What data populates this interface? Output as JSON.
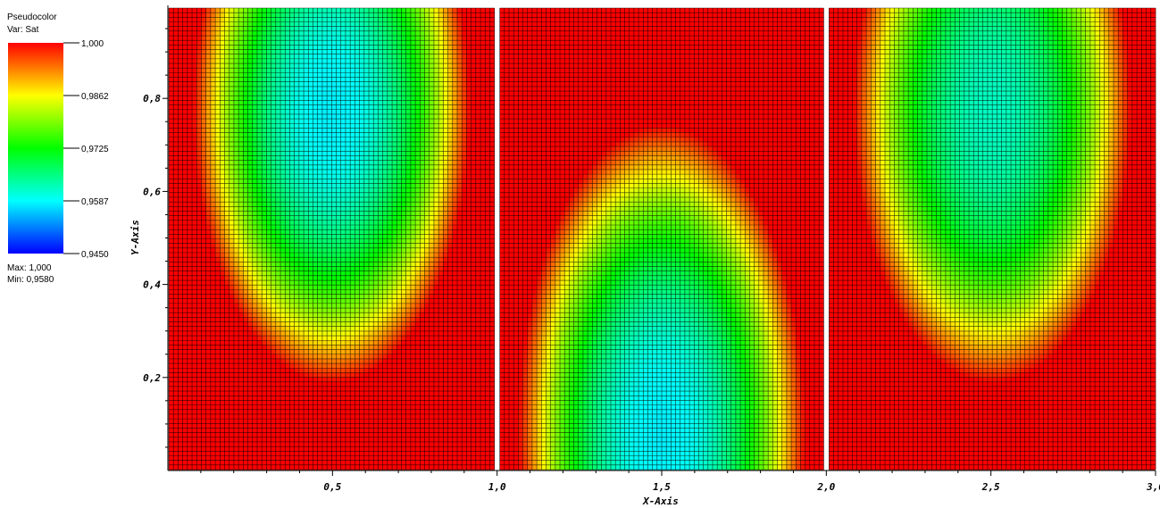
{
  "chart_data": {
    "type": "heatmap",
    "plot_type_label": "Pseudocolor",
    "var_label": "Var: Sat",
    "colorbar": {
      "colors": [
        "#ff0000",
        "#ffff00",
        "#00ff00",
        "#00ffff",
        "#0000ff"
      ],
      "tick_labels": [
        "1,000",
        "0,9862",
        "0,9725",
        "0,9587",
        "0,9450"
      ],
      "range": [
        0.945,
        1.0
      ]
    },
    "max_label": "Max: 1,000",
    "min_label": "Min: 0,9580",
    "xlabel": "X-Axis",
    "ylabel": "Y-Axis",
    "xlim": [
      0,
      3
    ],
    "ylim": [
      0,
      1
    ],
    "x_tick_labels": [
      "0,5",
      "1,0",
      "1,5",
      "2,0",
      "2,5",
      "3,0"
    ],
    "x_tick_values": [
      0.5,
      1.0,
      1.5,
      2.0,
      2.5,
      3.0
    ],
    "y_tick_labels": [
      "0,2",
      "0,4",
      "0,6",
      "0,8"
    ],
    "y_tick_values": [
      0.2,
      0.4,
      0.6,
      0.8
    ],
    "panels": [
      {
        "x_range": [
          0,
          1
        ],
        "min_at": "upper-center",
        "min_value": 0.958
      },
      {
        "x_range": [
          1,
          2
        ],
        "min_at": "lower-center",
        "min_value": 0.958
      },
      {
        "x_range": [
          2,
          3
        ],
        "min_at": "upper-center",
        "min_value": 0.962
      }
    ],
    "grid": true,
    "mesh_cells_per_panel": [
      70,
      100
    ],
    "legend_position": "top-left"
  }
}
